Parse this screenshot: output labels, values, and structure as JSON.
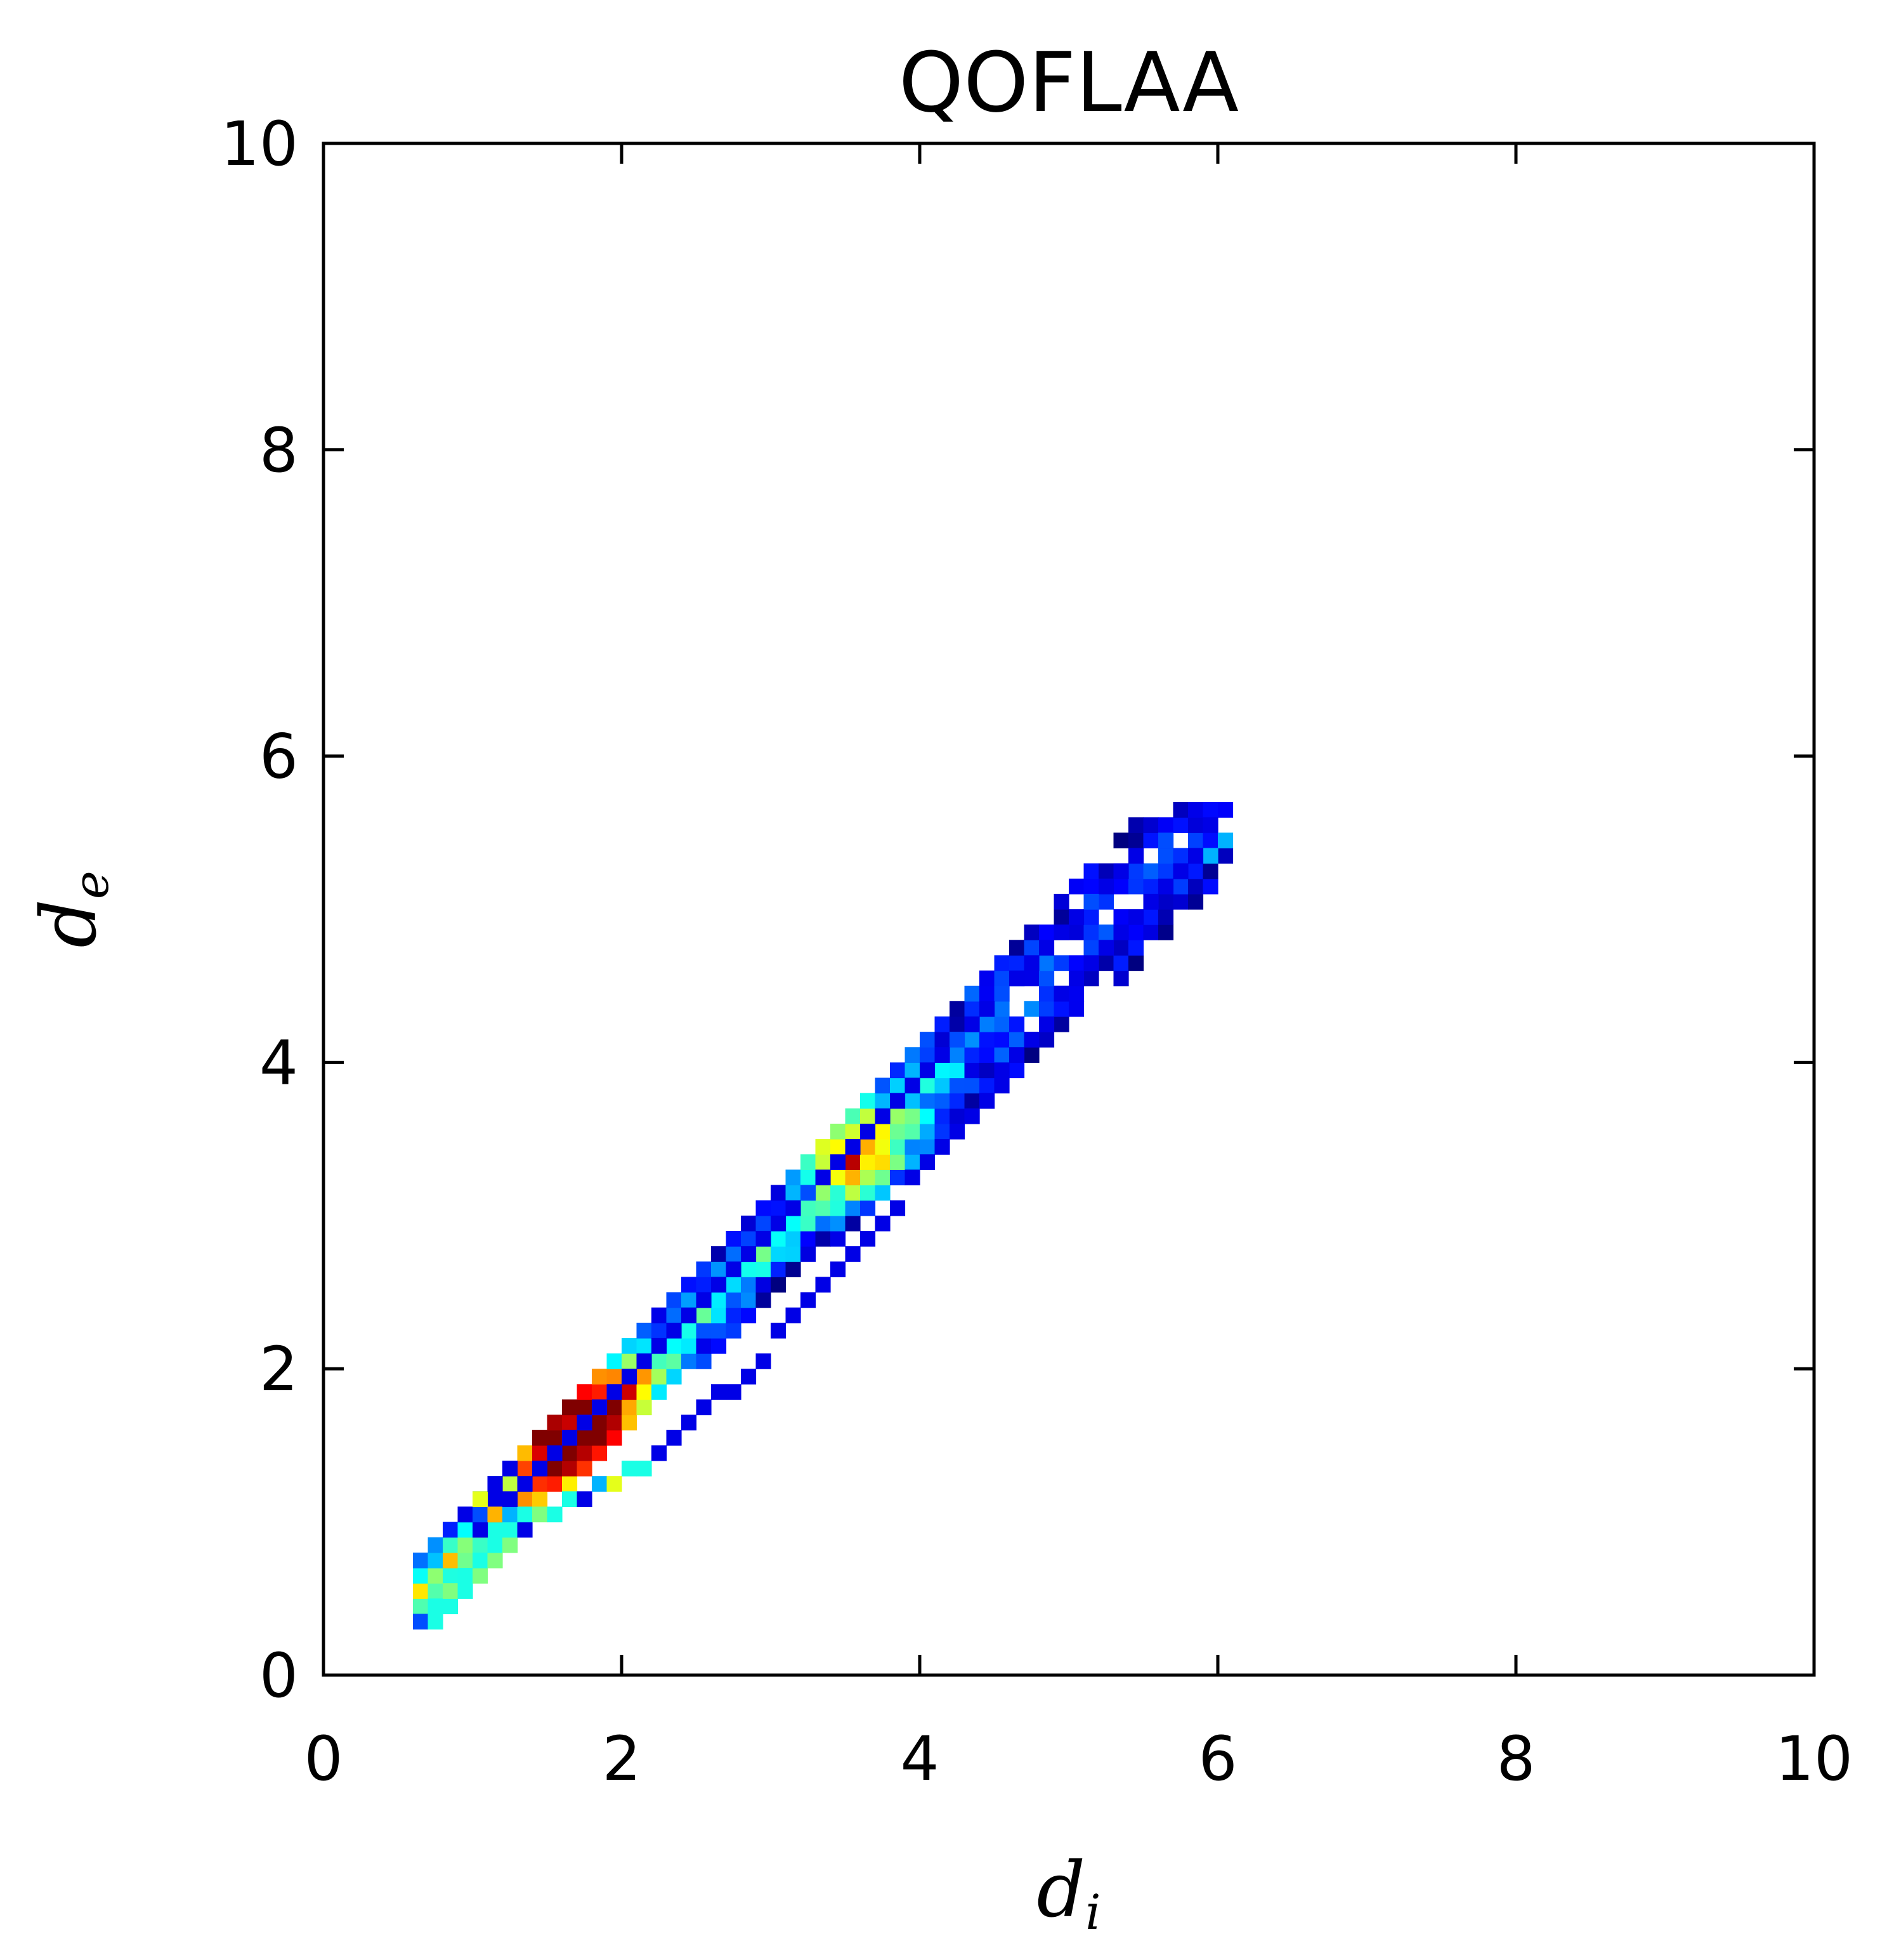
{
  "chart_data": {
    "type": "heatmap",
    "title": "QOFLAA",
    "xlabel": {
      "base": "d",
      "sub": "i"
    },
    "ylabel": {
      "base": "d",
      "sub": "e"
    },
    "xlim": [
      0,
      10
    ],
    "ylim": [
      0,
      10
    ],
    "x_ticks": [
      "0",
      "2",
      "4",
      "6",
      "8",
      "10"
    ],
    "y_ticks": [
      "0",
      "2",
      "4",
      "6",
      "8",
      "10"
    ],
    "grid": false,
    "legend": "none",
    "colormap": "jet",
    "bin_size": 0.1,
    "cells": [
      [
        0.6,
        0.3,
        2
      ],
      [
        0.7,
        0.3,
        4
      ],
      [
        0.7,
        0.4,
        4
      ],
      [
        0.8,
        0.4,
        4
      ],
      [
        0.8,
        0.5,
        5
      ],
      [
        0.9,
        0.5,
        4
      ],
      [
        0.9,
        0.6,
        4
      ],
      [
        1.0,
        0.6,
        5
      ],
      [
        1.0,
        0.7,
        4
      ],
      [
        1.1,
        0.7,
        5
      ],
      [
        1.1,
        0.8,
        4
      ],
      [
        1.2,
        0.8,
        5
      ],
      [
        1.0,
        0.9,
        1
      ],
      [
        1.2,
        0.9,
        4
      ],
      [
        1.3,
        0.9,
        1
      ],
      [
        0.9,
        1.0,
        1
      ],
      [
        1.0,
        1.0,
        2
      ],
      [
        1.1,
        1.1,
        1
      ],
      [
        1.0,
        1.1,
        6
      ],
      [
        1.1,
        1.0,
        7
      ],
      [
        1.2,
        1.0,
        3
      ],
      [
        1.3,
        1.0,
        4
      ],
      [
        1.4,
        1.0,
        5
      ],
      [
        1.5,
        1.0,
        4
      ],
      [
        1.6,
        1.1,
        4
      ],
      [
        1.7,
        1.1,
        1
      ],
      [
        1.8,
        1.2,
        3
      ],
      [
        1.9,
        1.2,
        6
      ],
      [
        2.0,
        1.3,
        4
      ],
      [
        2.1,
        1.3,
        4
      ],
      [
        2.2,
        1.4,
        1
      ],
      [
        2.3,
        1.5,
        1
      ],
      [
        2.4,
        1.6,
        1
      ],
      [
        2.5,
        1.7,
        1
      ],
      [
        2.6,
        1.8,
        1
      ],
      [
        2.7,
        1.8,
        1
      ],
      [
        2.8,
        1.9,
        1
      ],
      [
        2.9,
        2.0,
        1
      ],
      [
        3.0,
        2.2,
        1
      ],
      [
        3.1,
        2.3,
        1
      ],
      [
        3.2,
        2.4,
        1
      ],
      [
        3.3,
        2.5,
        1
      ],
      [
        3.4,
        2.6,
        1
      ],
      [
        3.5,
        2.7,
        1
      ],
      [
        3.6,
        2.8,
        1
      ],
      [
        3.7,
        2.9,
        1
      ],
      [
        3.8,
        3.0,
        1
      ],
      [
        3.9,
        3.2,
        1
      ],
      [
        4.0,
        3.3,
        1
      ],
      [
        4.1,
        3.4,
        1
      ],
      [
        4.2,
        3.5,
        1
      ],
      [
        4.3,
        3.6,
        1
      ],
      [
        4.4,
        3.7,
        1
      ],
      [
        4.5,
        3.9,
        1
      ],
      [
        4.6,
        4.0,
        1
      ],
      [
        4.7,
        4.1,
        1
      ],
      [
        4.8,
        4.2,
        1
      ],
      [
        4.9,
        4.4,
        1
      ],
      [
        5.0,
        4.5,
        1
      ],
      [
        5.1,
        4.6,
        1
      ],
      [
        5.2,
        4.7,
        1
      ],
      [
        5.3,
        4.8,
        1
      ],
      [
        5.4,
        4.9,
        1
      ],
      [
        5.5,
        5.0,
        1
      ],
      [
        5.6,
        5.1,
        1
      ],
      [
        5.7,
        5.2,
        1
      ],
      [
        5.8,
        5.3,
        1
      ],
      [
        5.9,
        5.5,
        1
      ],
      [
        6.0,
        5.4,
        3
      ],
      [
        5.9,
        5.3,
        3
      ],
      [
        5.8,
        5.3,
        1
      ],
      [
        5.6,
        5.4,
        2
      ],
      [
        5.4,
        5.3,
        1
      ],
      [
        5.3,
        5.2,
        1
      ],
      [
        5.2,
        5.1,
        1
      ],
      [
        5.1,
        5.0,
        2
      ],
      [
        5.0,
        4.9,
        1
      ],
      [
        4.9,
        4.8,
        1
      ],
      [
        4.8,
        4.7,
        1
      ],
      [
        4.7,
        4.6,
        1
      ],
      [
        4.6,
        4.5,
        1
      ],
      [
        4.5,
        4.4,
        2
      ],
      [
        4.4,
        4.3,
        1
      ],
      [
        4.3,
        4.2,
        1
      ],
      [
        4.2,
        4.1,
        2
      ],
      [
        4.1,
        4.0,
        1
      ],
      [
        4.0,
        3.9,
        1
      ],
      [
        3.9,
        3.8,
        1
      ],
      [
        3.8,
        3.7,
        1
      ],
      [
        3.7,
        3.6,
        1
      ],
      [
        3.6,
        3.5,
        1
      ],
      [
        3.5,
        3.4,
        1
      ],
      [
        3.4,
        3.3,
        1
      ],
      [
        3.3,
        3.2,
        1
      ],
      [
        3.2,
        3.1,
        2
      ],
      [
        3.1,
        3.0,
        1
      ],
      [
        3.0,
        2.9,
        1
      ],
      [
        2.9,
        2.8,
        1
      ],
      [
        2.8,
        2.7,
        1
      ],
      [
        2.7,
        2.6,
        1
      ],
      [
        2.6,
        2.5,
        1
      ],
      [
        2.5,
        2.4,
        1
      ],
      [
        2.4,
        2.3,
        1
      ],
      [
        2.3,
        2.2,
        1
      ],
      [
        2.2,
        2.1,
        1
      ],
      [
        2.1,
        2.0,
        1
      ],
      [
        2.0,
        1.9,
        1
      ],
      [
        1.9,
        1.8,
        1
      ],
      [
        1.8,
        1.7,
        1
      ],
      [
        1.7,
        1.6,
        1
      ],
      [
        1.6,
        1.5,
        1
      ],
      [
        1.5,
        1.4,
        1
      ],
      [
        1.4,
        1.3,
        1
      ],
      [
        1.3,
        1.2,
        1
      ],
      [
        1.2,
        1.1,
        1
      ],
      [
        1.1,
        1.2,
        1
      ],
      [
        1.2,
        1.3,
        1
      ]
    ]
  }
}
